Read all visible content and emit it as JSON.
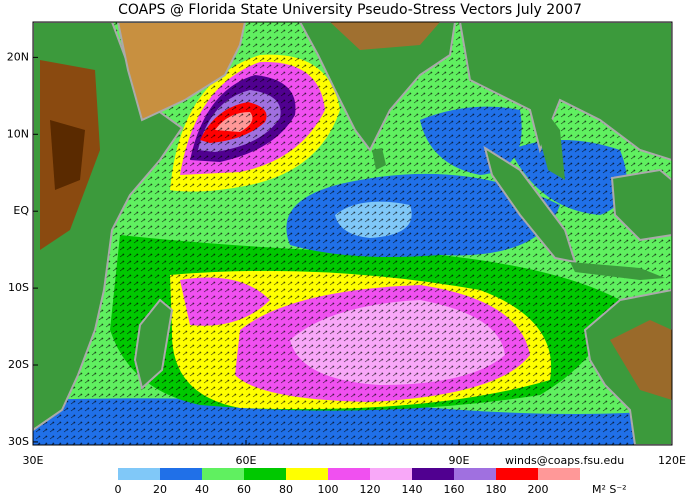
{
  "header": {
    "title": "COAPS @ Florida State University Pseudo-Stress Vectors July 2007"
  },
  "map": {
    "xlim": [
      30,
      120
    ],
    "ylim": [
      -30.4,
      24.6
    ],
    "xticks": [
      {
        "value": 30,
        "label": "30E"
      },
      {
        "value": 60,
        "label": "60E"
      },
      {
        "value": 90,
        "label": "90E"
      },
      {
        "value": 120,
        "label": "120E"
      }
    ],
    "yticks": [
      {
        "value": 20,
        "label": "20N"
      },
      {
        "value": 10,
        "label": "10N"
      },
      {
        "value": 0,
        "label": "EQ"
      },
      {
        "value": -10,
        "label": "10S"
      },
      {
        "value": -20,
        "label": "20S"
      },
      {
        "value": -30,
        "label": "30S"
      }
    ]
  },
  "colorbar": {
    "ticks": [
      0,
      20,
      40,
      60,
      80,
      100,
      120,
      140,
      160,
      180,
      200
    ],
    "colors": [
      "#80c8f8",
      "#2070e8",
      "#60f060",
      "#00c800",
      "#ffff00",
      "#f050f0",
      "#f8a8f8",
      "#500090",
      "#a070e0",
      "#ff0000",
      "#ff9898"
    ],
    "units": "M² S⁻²"
  },
  "credit": "winds@coaps.fsu.edu"
}
